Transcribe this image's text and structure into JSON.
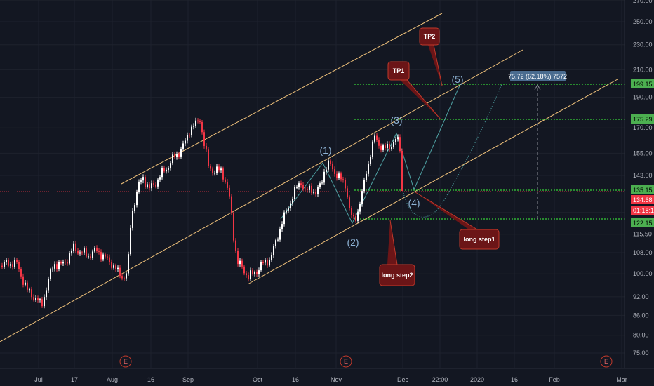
{
  "chart_data": {
    "type": "candlestick",
    "y_axis": {
      "scale": "log",
      "range": [
        71,
        275
      ],
      "ticks": [
        "270.00",
        "250.00",
        "230.00",
        "210.00",
        "190.00",
        "170.00",
        "155.00",
        "143.00",
        "125.00",
        "115.50",
        "108.00",
        "100.00",
        "92.00",
        "86.00",
        "80.00",
        "75.00"
      ]
    },
    "x_axis": {
      "ticks": [
        "Jul",
        "17",
        "Aug",
        "16",
        "Sep",
        "Oct",
        "16",
        "Nov",
        "Dec",
        "22:00",
        "2020",
        "16",
        "Feb",
        "Mar"
      ]
    },
    "price_tags": [
      {
        "label": "199.15",
        "bg": "#4caf50",
        "fg": "#000000"
      },
      {
        "label": "175.29",
        "bg": "#4caf50",
        "fg": "#000000"
      },
      {
        "label": "135.15",
        "bg": "#4caf50",
        "fg": "#000000"
      },
      {
        "label": "134.68",
        "bg": "#f23645",
        "fg": "#ffffff"
      },
      {
        "label": "01:18:15",
        "bg": "#f23645",
        "fg": "#ffffff"
      },
      {
        "label": "122.15",
        "bg": "#4caf50",
        "fg": "#000000"
      }
    ],
    "wave_labels": [
      "(1)",
      "(2)",
      "(3)",
      "(4)",
      "(5)"
    ],
    "annotations": [
      "TP2",
      "TP1",
      "long step1",
      "long step2"
    ],
    "measure_label": "75.72 (62.18%) 7572",
    "earnings_markers": [
      "E",
      "E",
      "E"
    ],
    "levels": [
      199.15,
      175.29,
      135.15,
      122.15
    ],
    "last_price": 134.68,
    "colors": {
      "background": "#131722",
      "up": "#ffffff",
      "down": "#f23645",
      "channel": "#f0c27b",
      "target_lines": "#3cff3c",
      "last_price": "#f23645",
      "wave_path": "#4fa3a5"
    }
  }
}
